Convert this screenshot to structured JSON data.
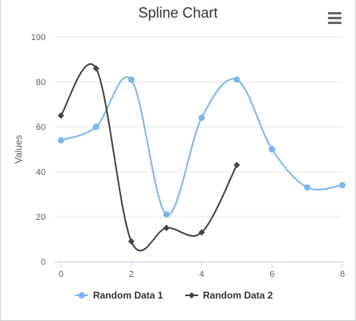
{
  "chart_data": {
    "type": "line",
    "curve": "spline",
    "title": "Spline Chart",
    "xlabel": "",
    "ylabel": "Values",
    "xlim": [
      0,
      8
    ],
    "ylim": [
      0,
      100
    ],
    "x_ticks": [
      0,
      2,
      4,
      6,
      8
    ],
    "y_ticks": [
      0,
      20,
      40,
      60,
      80,
      100
    ],
    "grid": "horizontal",
    "legend": "bottom-center",
    "series": [
      {
        "name": "Random Data 1",
        "color": "#7cb5ec",
        "marker": "circle",
        "x": [
          0,
          1,
          2,
          3,
          4,
          5,
          6,
          7,
          8
        ],
        "values": [
          54,
          60,
          81,
          21,
          64,
          81,
          50,
          33,
          34
        ]
      },
      {
        "name": "Random Data 2",
        "color": "#434348",
        "marker": "diamond",
        "x": [
          0,
          1,
          2,
          3,
          4,
          5
        ],
        "values": [
          65,
          86,
          9,
          15,
          13,
          43
        ]
      }
    ]
  },
  "menu": {
    "icon": "hamburger-menu-icon"
  }
}
